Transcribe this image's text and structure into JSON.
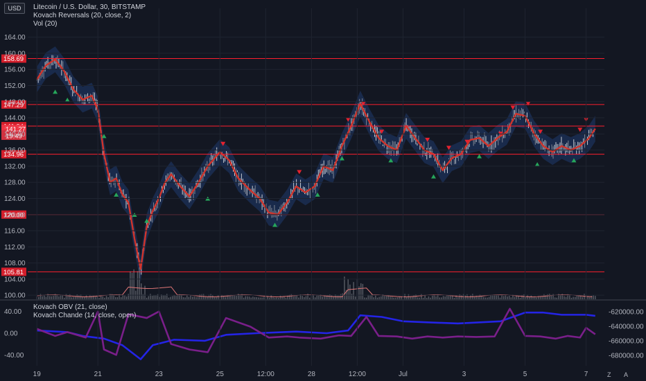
{
  "chart_data": [
    {
      "type": "candlestick",
      "currency_badge": "USD",
      "legend": [
        "Litecoin / U.S. Dollar, 30, BITSTAMP",
        "Kovach Reversals (20, close, 2)",
        "Vol (20)"
      ],
      "y_ticks": [
        "164.00",
        "160.00",
        "156.00",
        "152.00",
        "148.00",
        "144.00",
        "140.00",
        "136.00",
        "132.00",
        "128.00",
        "124.00",
        "120.00",
        "116.00",
        "112.00",
        "108.00",
        "104.00",
        "100.00"
      ],
      "ylim": [
        99.0,
        166.0
      ],
      "x_ticks": [
        {
          "label": "19",
          "x": 0.0
        },
        {
          "label": "21",
          "x": 2.0
        },
        {
          "label": "23",
          "x": 4.0
        },
        {
          "label": "25",
          "x": 6.0
        },
        {
          "label": "12:00",
          "x": 7.5
        },
        {
          "label": "28",
          "x": 9.0
        },
        {
          "label": "12:00",
          "x": 10.5
        },
        {
          "label": "Jul",
          "x": 12.0
        },
        {
          "label": "3",
          "x": 14.0
        },
        {
          "label": "5",
          "x": 16.0
        },
        {
          "label": "7",
          "x": 18.0
        }
      ],
      "xlim": [
        -0.3,
        18.6
      ],
      "price_series": [
        [
          0.0,
          153.5
        ],
        [
          0.3,
          157.0
        ],
        [
          0.6,
          158.5
        ],
        [
          0.9,
          155.5
        ],
        [
          1.2,
          151.0
        ],
        [
          1.5,
          148.5
        ],
        [
          1.8,
          149.5
        ],
        [
          2.0,
          146.0
        ],
        [
          2.2,
          135.0
        ],
        [
          2.4,
          128.0
        ],
        [
          2.6,
          129.0
        ],
        [
          2.8,
          125.0
        ],
        [
          3.0,
          123.0
        ],
        [
          3.2,
          114.0
        ],
        [
          3.4,
          106.5
        ],
        [
          3.6,
          117.0
        ],
        [
          3.8,
          121.0
        ],
        [
          4.0,
          124.0
        ],
        [
          4.2,
          128.0
        ],
        [
          4.4,
          130.0
        ],
        [
          4.7,
          127.0
        ],
        [
          5.0,
          124.5
        ],
        [
          5.3,
          128.0
        ],
        [
          5.6,
          132.0
        ],
        [
          6.0,
          135.5
        ],
        [
          6.3,
          133.5
        ],
        [
          6.6,
          129.0
        ],
        [
          7.0,
          126.0
        ],
        [
          7.3,
          124.0
        ],
        [
          7.6,
          120.5
        ],
        [
          7.9,
          120.0
        ],
        [
          8.2,
          123.0
        ],
        [
          8.5,
          127.0
        ],
        [
          8.8,
          125.5
        ],
        [
          9.1,
          127.0
        ],
        [
          9.4,
          132.0
        ],
        [
          9.7,
          131.0
        ],
        [
          10.0,
          137.0
        ],
        [
          10.3,
          142.0
        ],
        [
          10.6,
          147.5
        ],
        [
          10.9,
          143.0
        ],
        [
          11.2,
          139.0
        ],
        [
          11.5,
          137.0
        ],
        [
          11.8,
          136.0
        ],
        [
          12.1,
          142.0
        ],
        [
          12.4,
          139.0
        ],
        [
          12.7,
          136.0
        ],
        [
          13.0,
          135.0
        ],
        [
          13.3,
          131.0
        ],
        [
          13.6,
          134.0
        ],
        [
          13.9,
          135.0
        ],
        [
          14.2,
          138.5
        ],
        [
          14.5,
          139.0
        ],
        [
          14.8,
          137.0
        ],
        [
          15.1,
          139.0
        ],
        [
          15.4,
          140.5
        ],
        [
          15.7,
          145.0
        ],
        [
          16.0,
          144.5
        ],
        [
          16.3,
          140.0
        ],
        [
          16.6,
          137.0
        ],
        [
          16.9,
          135.5
        ],
        [
          17.2,
          137.0
        ],
        [
          17.5,
          136.0
        ],
        [
          17.8,
          137.0
        ],
        [
          18.1,
          139.0
        ],
        [
          18.3,
          141.3
        ]
      ],
      "h_lines": [
        {
          "label": "158.69",
          "value": 158.69
        },
        {
          "label": "147.29",
          "value": 147.29
        },
        {
          "label": "141.94",
          "value": 141.94
        },
        {
          "label": "134.96",
          "value": 134.96
        },
        {
          "label": "120.00",
          "value": 120.0
        },
        {
          "label": "105.81",
          "value": 105.81
        }
      ],
      "last_price_label": [
        "141.27",
        "19:49"
      ],
      "last_price_value": 141.27,
      "sell_markers": [
        [
          6.1,
          136.5
        ],
        [
          8.6,
          129.5
        ],
        [
          10.2,
          142.5
        ],
        [
          10.7,
          146.5
        ],
        [
          11.3,
          139.5
        ],
        [
          12.8,
          137.5
        ],
        [
          13.5,
          135.5
        ],
        [
          14.1,
          137.0
        ],
        [
          15.2,
          139.0
        ],
        [
          15.6,
          145.5
        ],
        [
          16.1,
          146.5
        ],
        [
          16.5,
          139.5
        ],
        [
          17.8,
          140.0
        ],
        [
          18.0,
          142.5
        ]
      ],
      "buy_markers": [
        [
          0.6,
          151.5
        ],
        [
          1.0,
          149.5
        ],
        [
          2.2,
          140.5
        ],
        [
          2.6,
          126.0
        ],
        [
          3.2,
          121.0
        ],
        [
          3.6,
          119.5
        ],
        [
          5.6,
          125.0
        ],
        [
          7.8,
          118.5
        ],
        [
          9.2,
          126.0
        ],
        [
          10.0,
          135.0
        ],
        [
          11.6,
          134.5
        ],
        [
          13.0,
          130.5
        ],
        [
          14.5,
          135.5
        ],
        [
          16.4,
          133.5
        ],
        [
          17.6,
          134.5
        ]
      ],
      "colors": {
        "price": "#e0e3eb",
        "ma": "#d0342c",
        "band": "#1f3a6e",
        "buy": "#26a65b",
        "sell": "#e5222f",
        "hline": "#ff1f2e",
        "volume": "#8a8e96",
        "vol_ma": "#e07676"
      }
    },
    {
      "type": "line",
      "legend": [
        "Kovach OBV (21, close)",
        "Kovach Chande (14, close, open)"
      ],
      "left_ticks": [
        "40.00",
        "0.00",
        "-40.00"
      ],
      "right_ticks": [
        "-620000.00",
        "-640000.00",
        "-660000.00",
        "-680000.00"
      ],
      "left_ylim": [
        -60.0,
        60.0
      ],
      "series": [
        {
          "color": "#2424e6",
          "values": [
            [
              0,
              5
            ],
            [
              1,
              2
            ],
            [
              1.5,
              -5
            ],
            [
              2.2,
              -10
            ],
            [
              2.8,
              -22
            ],
            [
              3.4,
              -48
            ],
            [
              3.8,
              -22
            ],
            [
              4.5,
              -12
            ],
            [
              5.5,
              -14
            ],
            [
              6.2,
              -3
            ],
            [
              7.2,
              0
            ],
            [
              8.5,
              3
            ],
            [
              9.5,
              0
            ],
            [
              10.2,
              5
            ],
            [
              10.6,
              33
            ],
            [
              11.3,
              30
            ],
            [
              12.0,
              22
            ],
            [
              12.8,
              20
            ],
            [
              13.8,
              18
            ],
            [
              15.2,
              22
            ],
            [
              16.0,
              38
            ],
            [
              16.6,
              38
            ],
            [
              17.2,
              34
            ],
            [
              18.0,
              34
            ],
            [
              18.3,
              32
            ]
          ]
        },
        {
          "color": "#7a1f8a",
          "values": [
            [
              0,
              8
            ],
            [
              0.6,
              -5
            ],
            [
              1.0,
              2
            ],
            [
              1.6,
              -8
            ],
            [
              2.0,
              40
            ],
            [
              2.2,
              -30
            ],
            [
              2.6,
              -40
            ],
            [
              3.0,
              35
            ],
            [
              3.6,
              28
            ],
            [
              4.0,
              40
            ],
            [
              4.4,
              -20
            ],
            [
              5.0,
              -30
            ],
            [
              5.6,
              -35
            ],
            [
              6.2,
              28
            ],
            [
              7.0,
              12
            ],
            [
              7.6,
              -8
            ],
            [
              8.2,
              -6
            ],
            [
              8.6,
              -8
            ],
            [
              9.3,
              -10
            ],
            [
              9.9,
              -4
            ],
            [
              10.3,
              -5
            ],
            [
              10.8,
              30
            ],
            [
              11.2,
              -5
            ],
            [
              11.8,
              -6
            ],
            [
              12.3,
              -10
            ],
            [
              12.8,
              -6
            ],
            [
              13.3,
              -8
            ],
            [
              13.8,
              -6
            ],
            [
              14.4,
              -7
            ],
            [
              15.0,
              -6
            ],
            [
              15.5,
              45
            ],
            [
              16.0,
              -5
            ],
            [
              16.5,
              -6
            ],
            [
              17.0,
              -10
            ],
            [
              17.4,
              -5
            ],
            [
              17.8,
              -8
            ],
            [
              18.0,
              10
            ],
            [
              18.3,
              -2
            ]
          ]
        }
      ]
    }
  ],
  "corner_labels": {
    "z": "Z",
    "a": "A"
  }
}
